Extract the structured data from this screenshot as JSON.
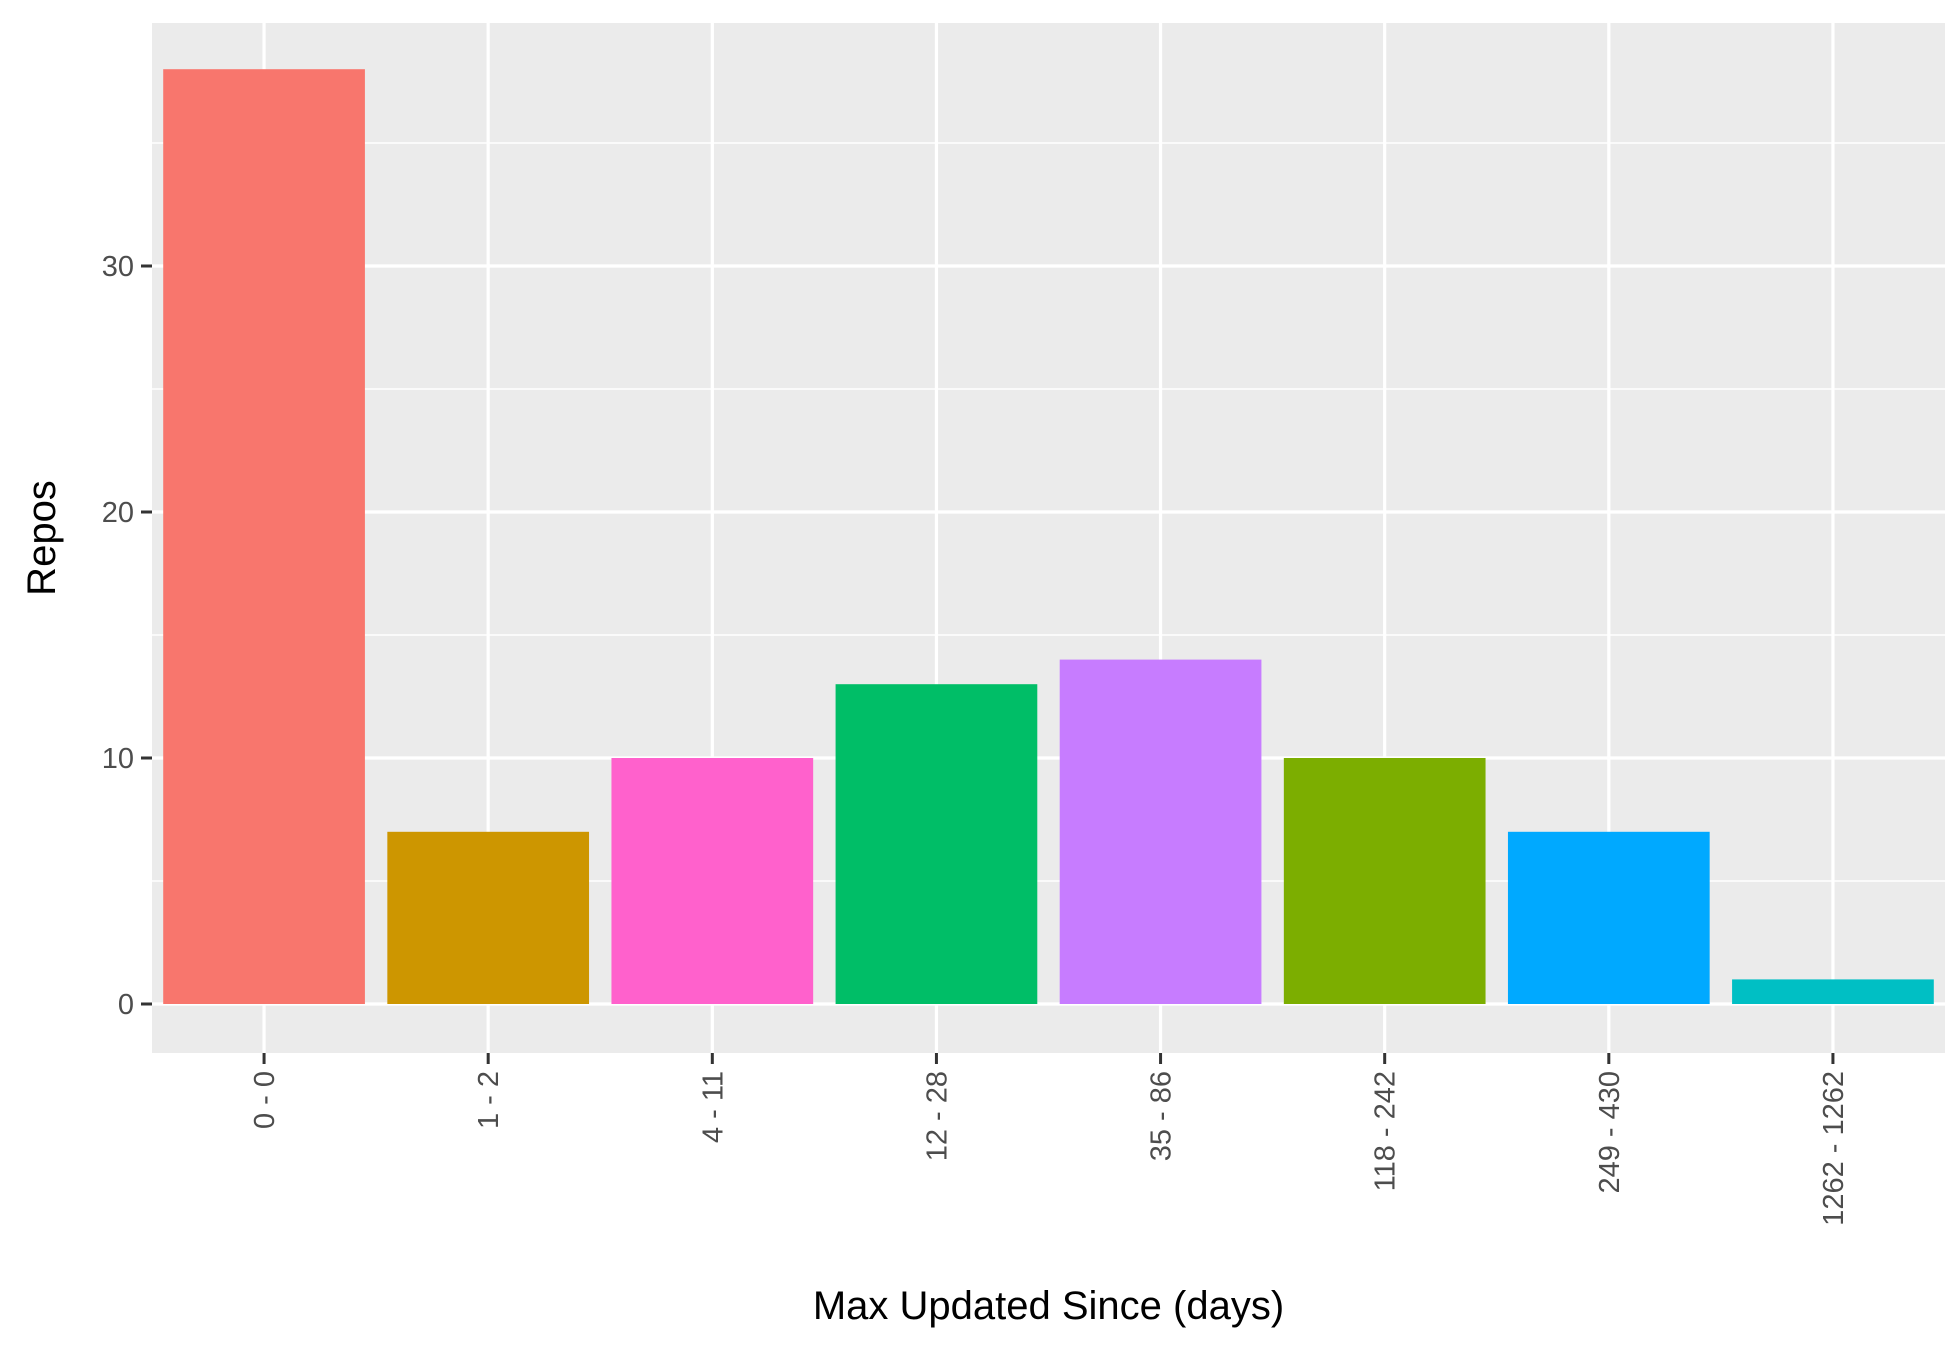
{
  "chart_data": {
    "type": "bar",
    "title": "",
    "xlabel": "Max Updated Since (days)",
    "ylabel": "Repos",
    "categories": [
      "0 - 0",
      "1 - 2",
      "4 - 11",
      "12 - 28",
      "35 - 86",
      "118 - 242",
      "249 - 430",
      "1262 - 1262"
    ],
    "values": [
      38,
      7,
      10,
      13,
      14,
      10,
      7,
      1
    ],
    "colors": [
      "#F8766D",
      "#CD9600",
      "#FF61CC",
      "#00BE67",
      "#C77CFF",
      "#7CAE00",
      "#00A9FF",
      "#00BFC4"
    ],
    "ylim": [
      0,
      40
    ],
    "yticks": [
      0,
      10,
      20,
      30
    ],
    "grid": true,
    "panel_background": "#EBEBEB",
    "grid_color": "#FFFFFF",
    "legend": "none"
  }
}
